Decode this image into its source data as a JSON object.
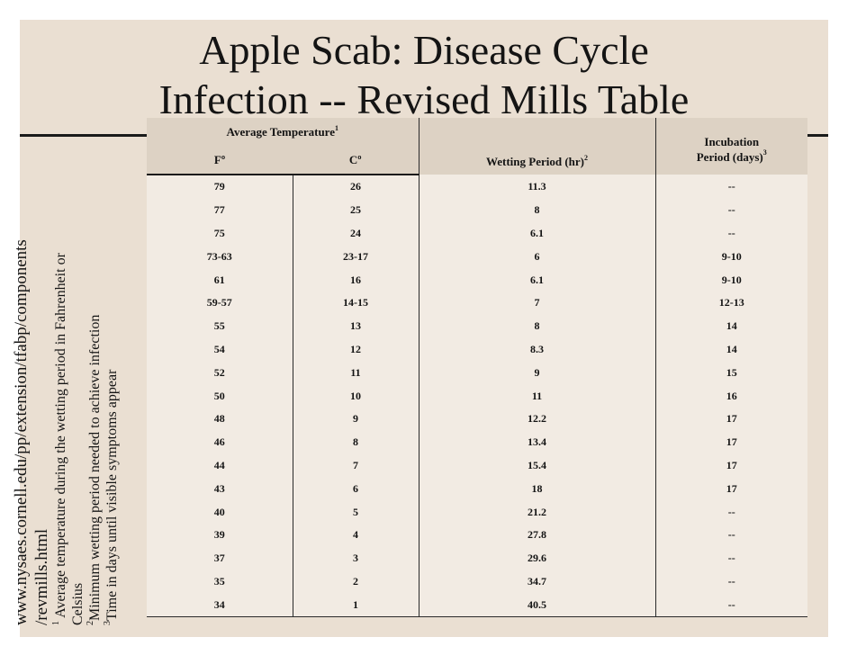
{
  "title": {
    "line1": "Apple Scab:  Disease Cycle",
    "line2": "Infection -- Revised Mills Table"
  },
  "side_notes": {
    "url_line1": "www.nysaes.cornell.edu/pp/extension/tfabp/components",
    "url_line2": "/revmills.html",
    "note1_mark": "1",
    "note1_text": " Average temperature during the wetting period in Fahrenheit or",
    "note1_cont": "Celsius",
    "note2_mark": "2",
    "note2_text": "Minimum wetting period needed to achieve infection",
    "note3_mark": "3",
    "note3_text": "Time in days until visible symptoms appear"
  },
  "table": {
    "header": {
      "avg_temp": "Average Temperature",
      "avg_temp_sup": "1",
      "f": "Fº",
      "c": "Cº",
      "wetting": "Wetting Period (hr)",
      "wetting_sup": "2",
      "incubation_line1": "Incubation",
      "incubation_line2": "Period (days)",
      "incubation_sup": "3"
    },
    "rows": [
      {
        "f": "79",
        "c": "26",
        "wet": "11.3",
        "inc": "--"
      },
      {
        "f": "77",
        "c": "25",
        "wet": "8",
        "inc": "--"
      },
      {
        "f": "75",
        "c": "24",
        "wet": "6.1",
        "inc": "--"
      },
      {
        "f": "73-63",
        "c": "23-17",
        "wet": "6",
        "inc": "9-10"
      },
      {
        "f": "61",
        "c": "16",
        "wet": "6.1",
        "inc": "9-10"
      },
      {
        "f": "59-57",
        "c": "14-15",
        "wet": "7",
        "inc": "12-13"
      },
      {
        "f": "55",
        "c": "13",
        "wet": "8",
        "inc": "14"
      },
      {
        "f": "54",
        "c": "12",
        "wet": "8.3",
        "inc": "14"
      },
      {
        "f": "52",
        "c": "11",
        "wet": "9",
        "inc": "15"
      },
      {
        "f": "50",
        "c": "10",
        "wet": "11",
        "inc": "16"
      },
      {
        "f": "48",
        "c": "9",
        "wet": "12.2",
        "inc": "17"
      },
      {
        "f": "46",
        "c": "8",
        "wet": "13.4",
        "inc": "17"
      },
      {
        "f": "44",
        "c": "7",
        "wet": "15.4",
        "inc": "17"
      },
      {
        "f": "43",
        "c": "6",
        "wet": "18",
        "inc": "17"
      },
      {
        "f": "40",
        "c": "5",
        "wet": "21.2",
        "inc": "--"
      },
      {
        "f": "39",
        "c": "4",
        "wet": "27.8",
        "inc": "--"
      },
      {
        "f": "37",
        "c": "3",
        "wet": "29.6",
        "inc": "--"
      },
      {
        "f": "35",
        "c": "2",
        "wet": "34.7",
        "inc": "--"
      },
      {
        "f": "34",
        "c": "1",
        "wet": "40.5",
        "inc": "--"
      }
    ]
  }
}
